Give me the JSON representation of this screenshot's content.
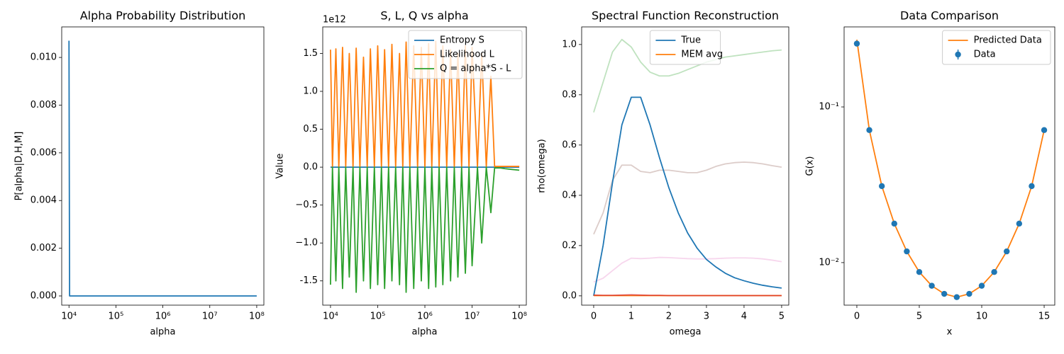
{
  "chart_data": [
    {
      "type": "line",
      "title": "Alpha Probability Distribution",
      "x_label": "alpha",
      "y_label": "P[alpha|D,H,M]",
      "xscale": "log",
      "xlim": [
        7000,
        142000000.0
      ],
      "xticks": [
        {
          "value": 10000.0,
          "label": "10⁴"
        },
        {
          "value": 100000.0,
          "label": "10⁵"
        },
        {
          "value": 1000000.0,
          "label": "10⁶"
        },
        {
          "value": 10000000.0,
          "label": "10⁷"
        },
        {
          "value": 100000000.0,
          "label": "10⁸"
        }
      ],
      "ylim": [
        -0.000386,
        0.01128
      ],
      "yticks": [
        {
          "value": 0,
          "label": "0.000"
        },
        {
          "value": 0.002,
          "label": "0.002"
        },
        {
          "value": 0.004,
          "label": "0.004"
        },
        {
          "value": 0.006,
          "label": "0.006"
        },
        {
          "value": 0.008,
          "label": "0.008"
        },
        {
          "value": 0.01,
          "label": "0.010"
        }
      ],
      "x": [
        10000,
        10300,
        100000000
      ],
      "series": [
        {
          "color": "#1f77b4",
          "values": [
            0.0107,
            0,
            0
          ]
        }
      ]
    },
    {
      "type": "line",
      "title": "S, L, Q vs alpha",
      "x_label": "alpha",
      "y_label": "Value",
      "y_offset_label": "1e12",
      "xscale": "log",
      "xlim": [
        6850,
        141000000.0
      ],
      "xticks": [
        {
          "value": 10000.0,
          "label": "10⁴"
        },
        {
          "value": 100000.0,
          "label": "10⁵"
        },
        {
          "value": 1000000.0,
          "label": "10⁶"
        },
        {
          "value": 10000000.0,
          "label": "10⁷"
        },
        {
          "value": 100000000.0,
          "label": "10⁸"
        }
      ],
      "ylim": [
        -1.82,
        1.85
      ],
      "yticks": [
        -1.5,
        {
          "value": -1,
          "label": "−1.0"
        },
        {
          "value": -0.5,
          "label": "−0.5"
        },
        {
          "value": 0,
          "label": "0.0"
        },
        0.5,
        {
          "value": 1,
          "label": "1.0"
        },
        1.5
      ],
      "legend": "upper right",
      "x": [
        10000.0,
        11000.0,
        13000.0,
        15000.0,
        18000.0,
        21000.0,
        25000.0,
        30000.0,
        35000.0,
        42000.0,
        50000.0,
        60000.0,
        70000.0,
        85000.0,
        100000.0,
        120000.0,
        140000.0,
        170000.0,
        200000.0,
        240000.0,
        290000.0,
        340000.0,
        400000.0,
        480000.0,
        580000.0,
        700000.0,
        840000.0,
        1000000.0,
        1200000.0,
        1400000.0,
        1700000.0,
        2000000.0,
        2400000.0,
        2900000.0,
        3500000.0,
        4200000.0,
        5000000.0,
        6000000.0,
        7200000.0,
        8600000.0,
        10000000.0,
        13000000.0,
        16000000.0,
        20000000.0,
        25000000.0,
        30000000.0,
        40000000.0,
        50000000.0,
        70000000.0,
        100000000.0
      ],
      "series": [
        {
          "name": "Entropy S",
          "color": "#1f77b4",
          "values": [
            0,
            0,
            0,
            0,
            0,
            0,
            0,
            0,
            0,
            0,
            0,
            0,
            0,
            0,
            0,
            0,
            0,
            0,
            0,
            0,
            0,
            0,
            0,
            0,
            0,
            0,
            0,
            0,
            0,
            0,
            0,
            0,
            0,
            0,
            0,
            0,
            0,
            0,
            0,
            0,
            0,
            0,
            0,
            0,
            0,
            0,
            0,
            0,
            0,
            0
          ]
        },
        {
          "name": "Likelihood L",
          "color": "#ff7f0e",
          "values": [
            1.55,
            0,
            1.56,
            0,
            1.58,
            0,
            1.5,
            0,
            1.57,
            0,
            1.45,
            0,
            1.56,
            0,
            1.6,
            0,
            1.55,
            0,
            1.62,
            0,
            1.5,
            0,
            1.65,
            0,
            1.6,
            0,
            1.58,
            0,
            1.63,
            0,
            1.66,
            0,
            1.6,
            0,
            1.55,
            0,
            1.5,
            0,
            1.6,
            0,
            1.58,
            0,
            1.5,
            0,
            1.2,
            0.01,
            0.01,
            0.01,
            0.01,
            0.01
          ]
        },
        {
          "name": "Q = alpha*S - L",
          "color": "#2ca02c",
          "values": [
            -1.55,
            0,
            -1.5,
            0,
            -1.6,
            0,
            -1.45,
            0,
            -1.65,
            0,
            -1.5,
            0,
            -1.6,
            0,
            -1.55,
            0,
            -1.6,
            0,
            -1.5,
            0,
            -1.55,
            0,
            -1.65,
            0,
            -1.6,
            0,
            -1.5,
            0,
            -1.6,
            0,
            -1.58,
            0,
            -1.55,
            0,
            -1.5,
            0,
            -1.45,
            0,
            -1.4,
            0,
            -1.3,
            0,
            -1.0,
            0,
            -0.6,
            -0.01,
            -0.01,
            -0.02,
            -0.03,
            -0.04
          ]
        }
      ]
    },
    {
      "type": "line",
      "title": "Spectral Function Reconstruction",
      "x_label": "omega",
      "y_label": "rho(omega)",
      "xlim": [
        -0.32,
        5.19
      ],
      "xticks": [
        0,
        1,
        2,
        3,
        4,
        5
      ],
      "ylim": [
        -0.037,
        1.07
      ],
      "yticks": [
        {
          "value": 0,
          "label": "0.0"
        },
        0.2,
        0.4,
        0.6,
        0.8,
        {
          "value": 1,
          "label": "1.0"
        }
      ],
      "legend": "upper center",
      "x": [
        0,
        0.25,
        0.5,
        0.75,
        1,
        1.25,
        1.5,
        1.75,
        2,
        2.25,
        2.5,
        2.75,
        3,
        3.25,
        3.5,
        3.75,
        4,
        4.25,
        4.5,
        4.75,
        5
      ],
      "series": [
        {
          "color": "#2ca02c",
          "opacity": 0.3,
          "values": [
            0.73,
            0.85,
            0.97,
            1.02,
            0.99,
            0.93,
            0.89,
            0.875,
            0.875,
            0.885,
            0.9,
            0.915,
            0.93,
            0.94,
            0.95,
            0.955,
            0.96,
            0.965,
            0.97,
            0.975,
            0.978
          ]
        },
        {
          "color": "#8c564b",
          "opacity": 0.3,
          "values": [
            0.245,
            0.33,
            0.46,
            0.52,
            0.52,
            0.495,
            0.49,
            0.5,
            0.5,
            0.495,
            0.49,
            0.49,
            0.5,
            0.515,
            0.525,
            0.53,
            0.532,
            0.53,
            0.525,
            0.518,
            0.512
          ]
        },
        {
          "color": "#e377c2",
          "opacity": 0.3,
          "values": [
            0.055,
            0.07,
            0.1,
            0.13,
            0.15,
            0.148,
            0.15,
            0.153,
            0.152,
            0.15,
            0.148,
            0.147,
            0.147,
            0.148,
            0.15,
            0.151,
            0.151,
            0.15,
            0.147,
            0.142,
            0.136
          ]
        },
        {
          "name": "True",
          "color": "#1f77b4",
          "values": [
            0,
            0.2,
            0.45,
            0.68,
            0.79,
            0.79,
            0.68,
            0.55,
            0.43,
            0.33,
            0.25,
            0.19,
            0.145,
            0.115,
            0.09,
            0.072,
            0.06,
            0.05,
            0.042,
            0.036,
            0.031
          ]
        },
        {
          "name": "MEM avg",
          "color": "#ff7f0e",
          "values": [
            0.001,
            0.001,
            0.001,
            0.001,
            0.001,
            0.001,
            0.001,
            0.001,
            0.001,
            0.001,
            0.001,
            0.001,
            0.001,
            0.001,
            0.001,
            0.001,
            0.001,
            0.001,
            0.001,
            0.001,
            0.001
          ]
        },
        {
          "color": "#d62728",
          "opacity": 0.7,
          "values": [
            0.003,
            0.002,
            0.002,
            0.003,
            0.004,
            0.003,
            0.002,
            0.002,
            0.001,
            0.001,
            0.001,
            0.001,
            0.001,
            0.001,
            0.001,
            0.001,
            0.001,
            0.001,
            0.001,
            0.001,
            0.001
          ]
        }
      ]
    },
    {
      "type": "line",
      "title": "Data Comparison",
      "x_label": "x",
      "y_label": "G(x)",
      "xlim": [
        -1.02,
        15.85
      ],
      "xticks": [
        0,
        5,
        10,
        15
      ],
      "yscale": "log",
      "ylim": [
        0.00533,
        0.3266
      ],
      "yticks": [
        {
          "value": 0.1,
          "label": "10⁻¹"
        },
        {
          "value": 0.01,
          "label": "10⁻²"
        }
      ],
      "legend": "upper right",
      "x": [
        0,
        1,
        2,
        3,
        4,
        5,
        6,
        7,
        8,
        9,
        10,
        11,
        12,
        13,
        14,
        15
      ],
      "series": [
        {
          "name": "Predicted Data",
          "color": "#ff7f0e",
          "values": [
            0.27,
            0.071,
            0.031,
            0.0178,
            0.0118,
            0.0087,
            0.0071,
            0.0063,
            0.006,
            0.0063,
            0.0071,
            0.0087,
            0.0118,
            0.0178,
            0.031,
            0.071
          ]
        },
        {
          "name": "Data",
          "color": "#1f77b4",
          "mode": "markers",
          "values": [
            0.255,
            0.071,
            0.031,
            0.0178,
            0.0118,
            0.0087,
            0.0071,
            0.0063,
            0.006,
            0.0063,
            0.0071,
            0.0087,
            0.0118,
            0.0178,
            0.031,
            0.071
          ]
        }
      ]
    }
  ]
}
